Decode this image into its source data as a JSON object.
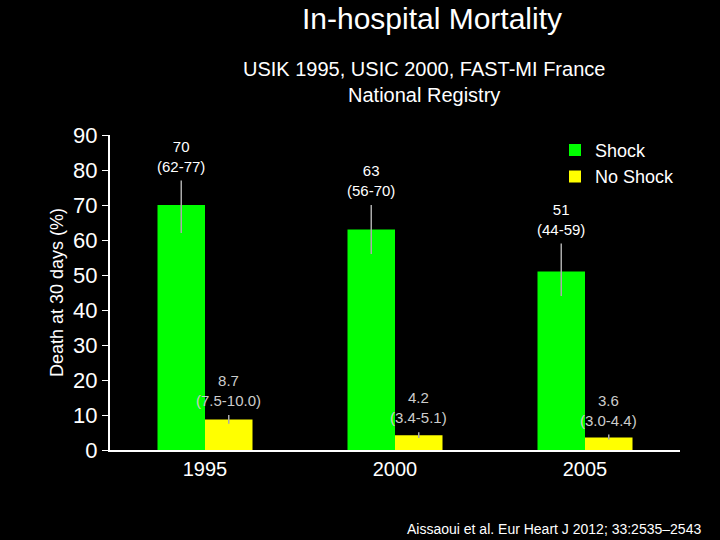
{
  "chart_data": {
    "type": "bar",
    "title": "In-hospital Mortality",
    "subtitle": "USIK 1995, USIC 2000, FAST-MI France\nNational Registry",
    "y_label": "Death at 30 days (%)",
    "source": "Aissaoui et al. Eur Heart J 2012; 33:2535–2543",
    "categories": [
      "1995",
      "2000",
      "2005"
    ],
    "series": [
      {
        "name": "Shock",
        "color": "#00ff00",
        "values": [
          70,
          63,
          51
        ],
        "ci_low": [
          62,
          56,
          44
        ],
        "ci_high": [
          77,
          70,
          59
        ],
        "ci_labels": [
          "(62-77)",
          "(56-70)",
          "(44-59)"
        ]
      },
      {
        "name": "No Shock",
        "color": "#ffff00",
        "values": [
          8.7,
          4.2,
          3.6
        ],
        "ci_low": [
          7.5,
          3.4,
          3.0
        ],
        "ci_high": [
          10.0,
          5.1,
          4.4
        ],
        "ci_labels": [
          "(7.5-10.0)",
          "(3.4-5.1)",
          "(3.0-4.4)"
        ]
      }
    ],
    "ylim": [
      0,
      90
    ],
    "yticks": [
      0,
      10,
      20,
      30,
      40,
      50,
      60,
      70,
      80,
      90
    ],
    "grid": false,
    "legend": "top right",
    "data_labels": true
  }
}
